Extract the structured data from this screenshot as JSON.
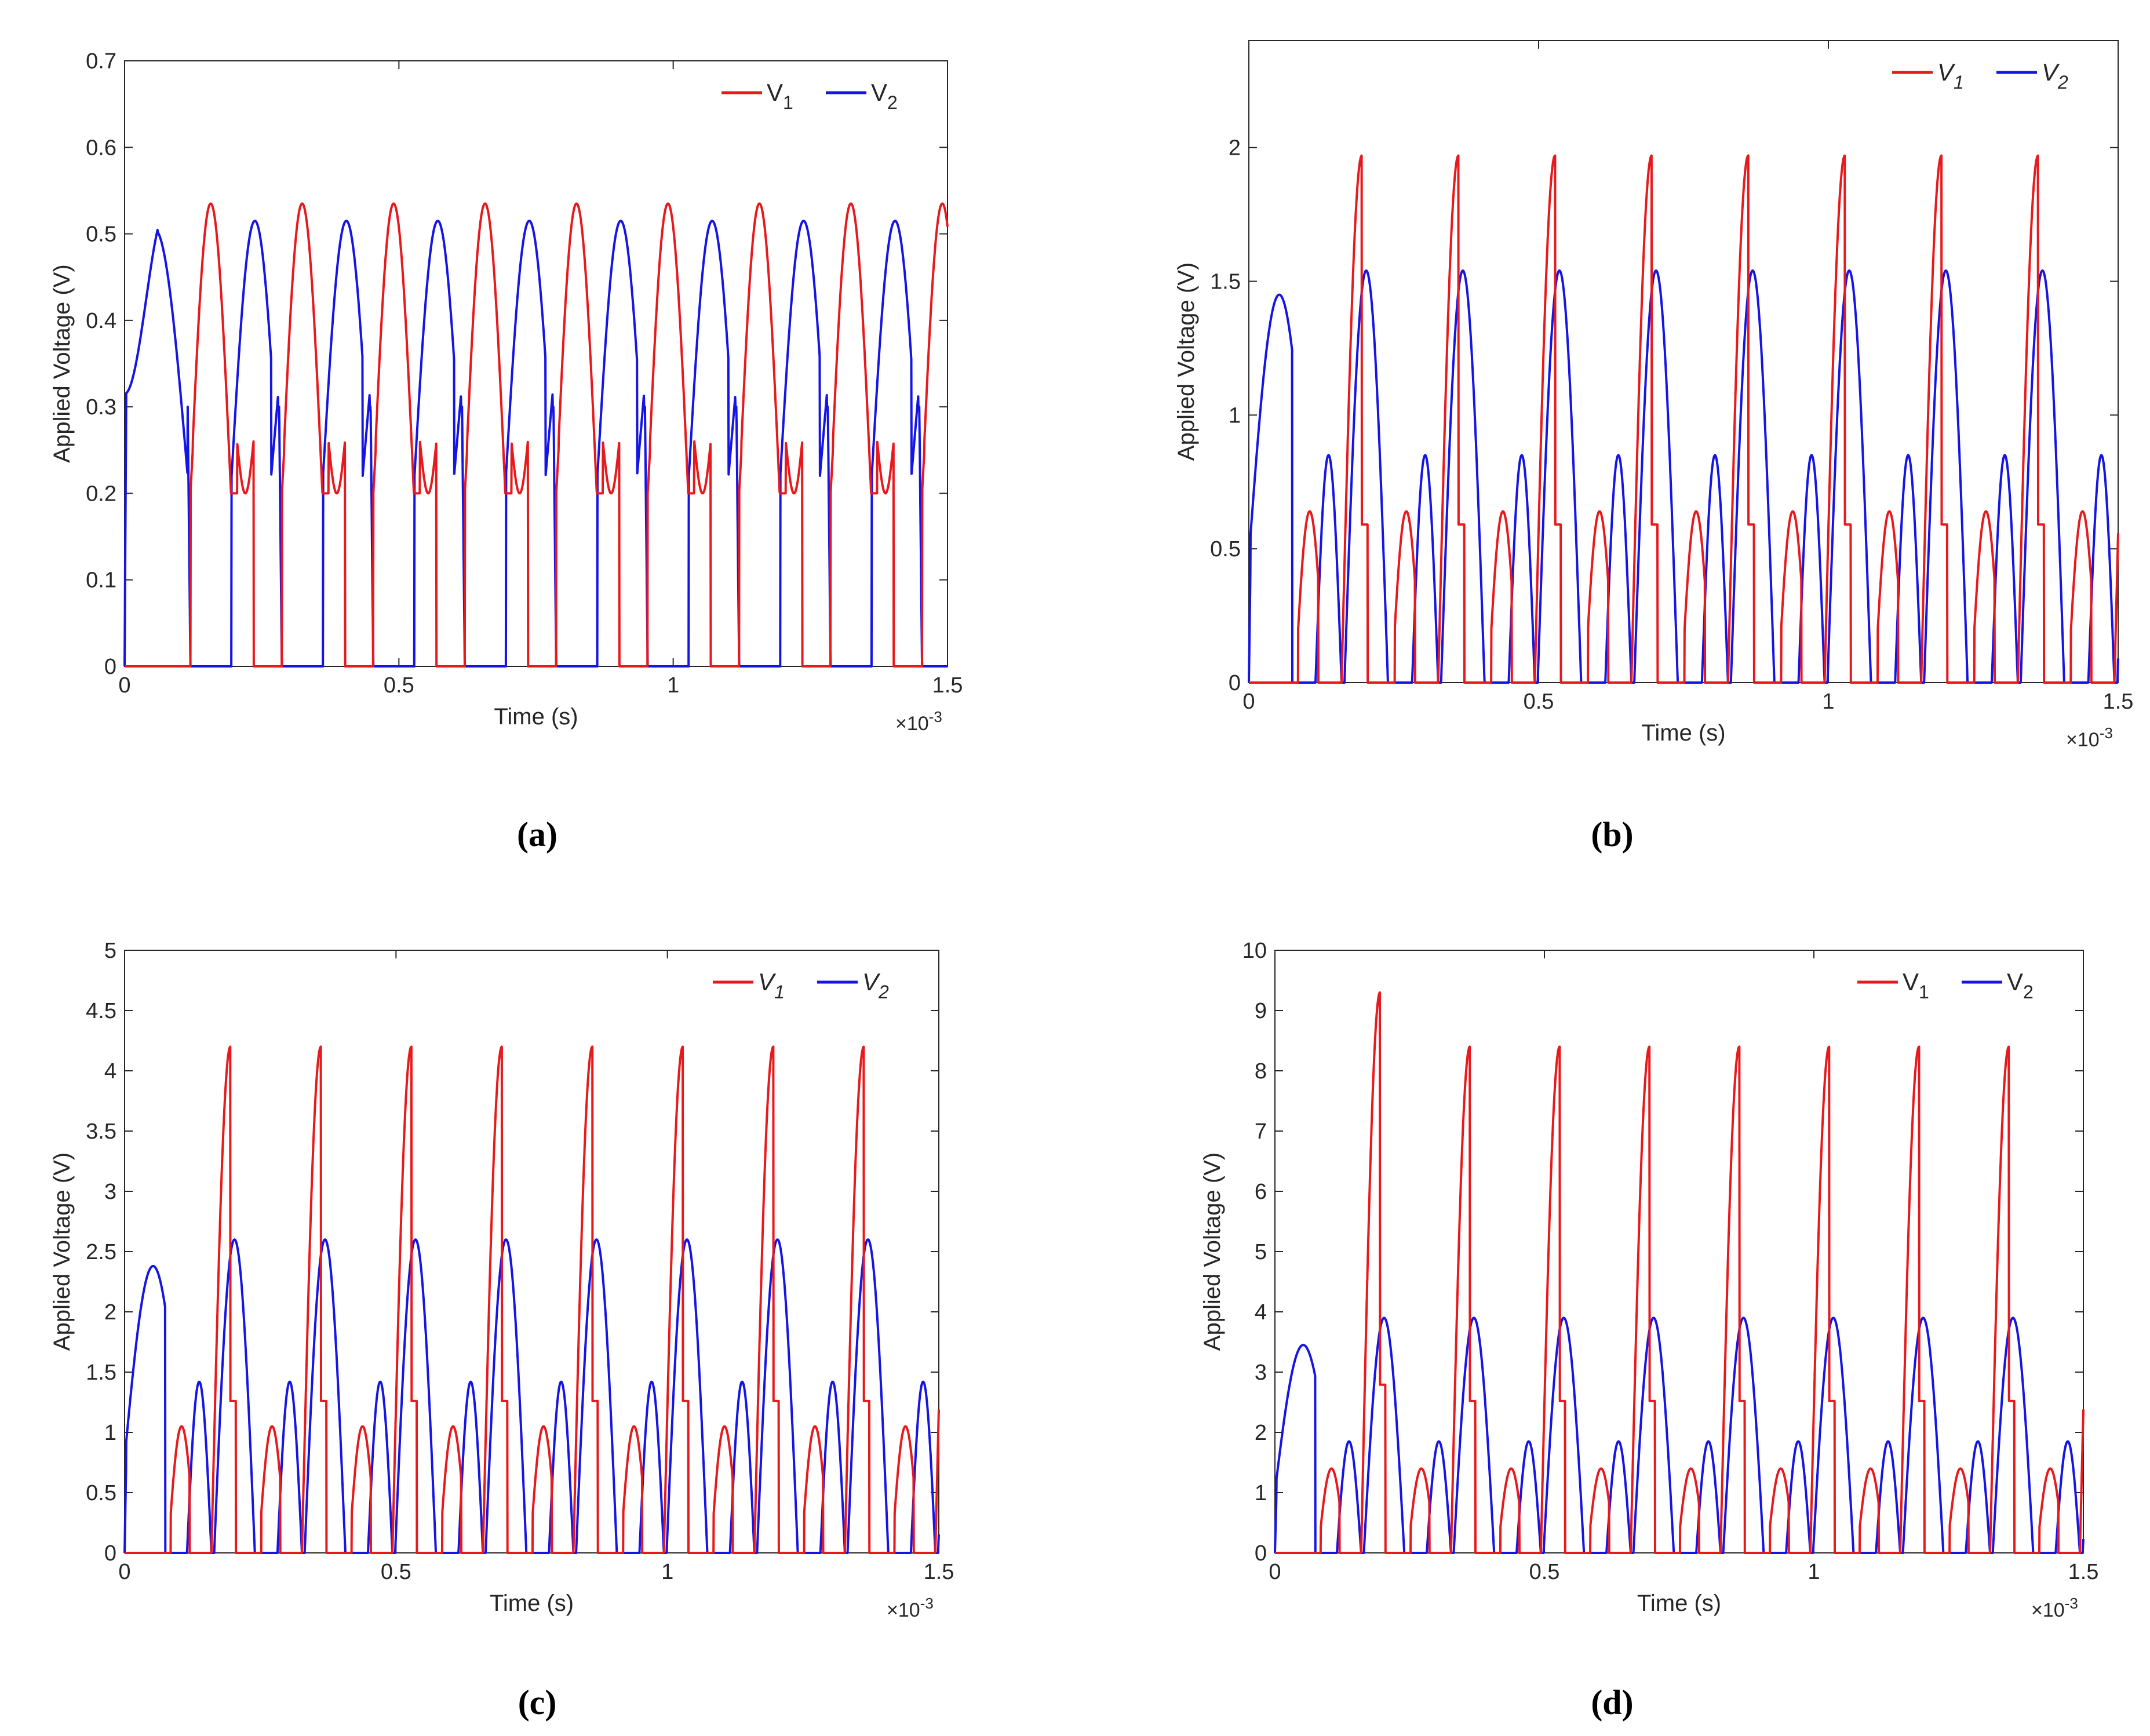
{
  "chart_data": [
    {
      "type": "line",
      "panel_label": "a",
      "xlabel": "Time (s)",
      "ylabel": "Applied Voltage (V)",
      "x_exponent": "-3",
      "xlim": [
        0,
        1.5
      ],
      "ylim": [
        0,
        0.7
      ],
      "x_ticks": [
        0,
        0.5,
        1,
        1.5
      ],
      "y_ticks": [
        0,
        0.1,
        0.2,
        0.3,
        0.4,
        0.5,
        0.6,
        0.7
      ],
      "legend_italic": false,
      "legend_position": "top-right",
      "series": [
        {
          "name": "V",
          "subscript": "1",
          "color": "#e8191c",
          "baseline": 0,
          "peak_low": 0.2,
          "peak_high": 0.535,
          "secondary": 0.25,
          "first": null,
          "shape": "a1"
        },
        {
          "name": "V",
          "subscript": "2",
          "color": "#1414e6",
          "baseline": 0,
          "peak_low": 0.22,
          "peak_high": 0.515,
          "secondary": 0.315,
          "first": 0.5,
          "shape": "a2"
        }
      ]
    },
    {
      "type": "line",
      "panel_label": "b",
      "xlabel": "Time (s)",
      "ylabel": "Applied Voltage (V)",
      "x_exponent": "-3",
      "xlim": [
        0,
        1.5
      ],
      "ylim": [
        0,
        2.4
      ],
      "x_ticks": [
        0,
        0.5,
        1,
        1.5
      ],
      "y_ticks": [
        0,
        0.5,
        1,
        1.5,
        2
      ],
      "legend_italic": true,
      "legend_position": "top-right",
      "series": [
        {
          "name": "V",
          "subscript": "1",
          "color": "#e8191c",
          "peak_high": 1.97,
          "secondary": 0.64,
          "first": null
        },
        {
          "name": "V",
          "subscript": "2",
          "color": "#1414e6",
          "peak_high": 1.54,
          "secondary": 0.85,
          "first": 1.45
        }
      ]
    },
    {
      "type": "line",
      "panel_label": "c",
      "xlabel": "Time (s)",
      "ylabel": "Applied Voltage (V)",
      "x_exponent": "-3",
      "xlim": [
        0,
        1.5
      ],
      "ylim": [
        0,
        5
      ],
      "x_ticks": [
        0,
        0.5,
        1,
        1.5
      ],
      "y_ticks": [
        0,
        0.5,
        1,
        1.5,
        2,
        2.5,
        3,
        3.5,
        4,
        4.5,
        5
      ],
      "legend_italic": true,
      "legend_position": "top-right",
      "series": [
        {
          "name": "V",
          "subscript": "1",
          "color": "#e8191c",
          "peak_high": 4.2,
          "secondary": 1.05,
          "first": null
        },
        {
          "name": "V",
          "subscript": "2",
          "color": "#1414e6",
          "peak_high": 2.6,
          "secondary": 1.42,
          "first": 2.38
        }
      ]
    },
    {
      "type": "line",
      "panel_label": "d",
      "xlabel": "Time (s)",
      "ylabel": "Applied Voltage (V)",
      "x_exponent": "-3",
      "xlim": [
        0,
        1.5
      ],
      "ylim": [
        0,
        10
      ],
      "x_ticks": [
        0,
        0.5,
        1,
        1.5
      ],
      "y_ticks": [
        0,
        1,
        2,
        3,
        4,
        5,
        6,
        7,
        8,
        9,
        10
      ],
      "legend_italic": false,
      "legend_position": "top-right",
      "series": [
        {
          "name": "V",
          "subscript": "1",
          "color": "#e8191c",
          "peak_high": 8.4,
          "secondary": 1.4,
          "first": 9.3
        },
        {
          "name": "V",
          "subscript": "2",
          "color": "#1414e6",
          "peak_high": 3.9,
          "secondary": 1.85,
          "first": 3.45
        }
      ]
    }
  ],
  "captions": {
    "a": "(a)",
    "b": "(b)",
    "c": "(c)",
    "d": "(d)"
  },
  "x_multiplier_base": "×10"
}
